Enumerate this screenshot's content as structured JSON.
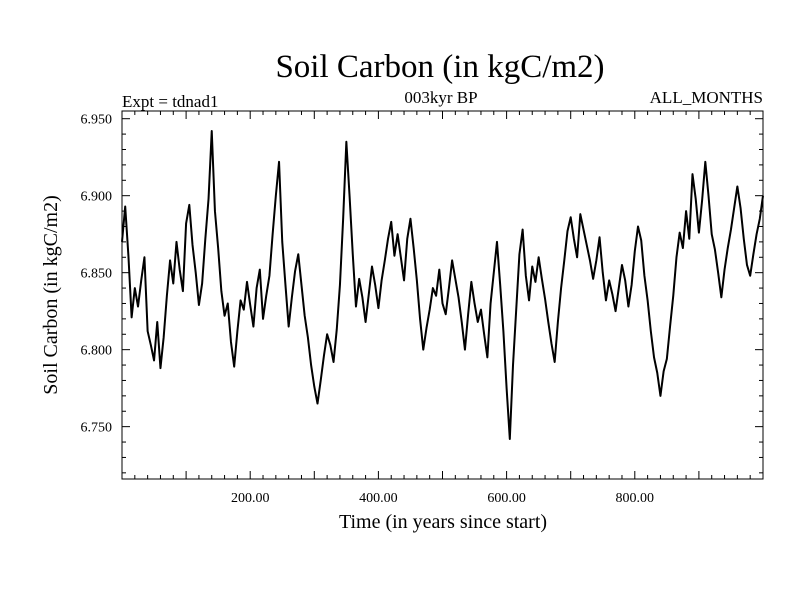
{
  "chart_data": {
    "type": "line",
    "title": "Soil Carbon (in kgC/m2)",
    "header_left": "Expt = tdnad1",
    "header_center": "003kyr BP",
    "header_right": "ALL_MONTHS",
    "xlabel": "Time (in years since start)",
    "ylabel": "Soil Carbon (in kgC/m2)",
    "xlim": [
      0,
      1000
    ],
    "ylim": [
      6.716,
      6.955
    ],
    "x_ticks": [
      200,
      400,
      600,
      800
    ],
    "x_tick_labels": [
      "200.00",
      "400.00",
      "600.00",
      "800.00"
    ],
    "y_ticks": [
      6.75,
      6.8,
      6.85,
      6.9,
      6.95
    ],
    "y_tick_labels": [
      "6.750",
      "6.800",
      "6.850",
      "6.900",
      "6.950"
    ],
    "grid": false,
    "series": [
      {
        "name": "Soil Carbon",
        "color": "#000000",
        "x": [
          0,
          5,
          10,
          15,
          20,
          25,
          30,
          35,
          40,
          45,
          50,
          55,
          60,
          65,
          70,
          75,
          80,
          85,
          90,
          95,
          100,
          105,
          110,
          115,
          120,
          125,
          130,
          135,
          140,
          145,
          150,
          155,
          160,
          165,
          170,
          175,
          180,
          185,
          190,
          195,
          200,
          205,
          210,
          215,
          220,
          225,
          230,
          235,
          240,
          245,
          250,
          255,
          260,
          265,
          270,
          275,
          280,
          285,
          290,
          295,
          300,
          305,
          310,
          315,
          320,
          325,
          330,
          335,
          340,
          345,
          350,
          355,
          360,
          365,
          370,
          375,
          380,
          385,
          390,
          395,
          400,
          405,
          410,
          415,
          420,
          425,
          430,
          435,
          440,
          445,
          450,
          455,
          460,
          465,
          470,
          475,
          480,
          485,
          490,
          495,
          500,
          505,
          510,
          515,
          520,
          525,
          530,
          535,
          540,
          545,
          550,
          555,
          560,
          565,
          570,
          575,
          580,
          585,
          590,
          595,
          600,
          605,
          610,
          615,
          620,
          625,
          630,
          635,
          640,
          645,
          650,
          655,
          660,
          665,
          670,
          675,
          680,
          685,
          690,
          695,
          700,
          705,
          710,
          715,
          720,
          725,
          730,
          735,
          740,
          745,
          750,
          755,
          760,
          765,
          770,
          775,
          780,
          785,
          790,
          795,
          800,
          805,
          810,
          815,
          820,
          825,
          830,
          835,
          840,
          845,
          850,
          855,
          860,
          865,
          870,
          875,
          880,
          885,
          890,
          895,
          900,
          905,
          910,
          915,
          920,
          925,
          930,
          935,
          940,
          945,
          950,
          955,
          960,
          965,
          970,
          975,
          980,
          985,
          990,
          995,
          1000
        ],
        "values": [
          6.87,
          6.893,
          6.861,
          6.821,
          6.84,
          6.828,
          6.845,
          6.86,
          6.812,
          6.803,
          6.793,
          6.818,
          6.788,
          6.808,
          6.835,
          6.858,
          6.843,
          6.87,
          6.852,
          6.838,
          6.882,
          6.894,
          6.868,
          6.85,
          6.829,
          6.843,
          6.872,
          6.898,
          6.942,
          6.89,
          6.866,
          6.838,
          6.822,
          6.83,
          6.805,
          6.789,
          6.812,
          6.832,
          6.826,
          6.844,
          6.829,
          6.815,
          6.84,
          6.852,
          6.82,
          6.835,
          6.848,
          6.875,
          6.9,
          6.922,
          6.87,
          6.842,
          6.815,
          6.834,
          6.851,
          6.862,
          6.842,
          6.822,
          6.808,
          6.79,
          6.776,
          6.765,
          6.78,
          6.796,
          6.81,
          6.803,
          6.792,
          6.813,
          6.842,
          6.885,
          6.935,
          6.9,
          6.862,
          6.828,
          6.846,
          6.834,
          6.818,
          6.836,
          6.854,
          6.842,
          6.827,
          6.845,
          6.858,
          6.872,
          6.883,
          6.861,
          6.875,
          6.86,
          6.845,
          6.872,
          6.885,
          6.866,
          6.845,
          6.82,
          6.8,
          6.814,
          6.826,
          6.84,
          6.835,
          6.852,
          6.83,
          6.823,
          6.84,
          6.858,
          6.846,
          6.834,
          6.818,
          6.8,
          6.823,
          6.844,
          6.83,
          6.818,
          6.826,
          6.81,
          6.795,
          6.83,
          6.85,
          6.87,
          6.842,
          6.812,
          6.775,
          6.742,
          6.79,
          6.826,
          6.862,
          6.878,
          6.848,
          6.832,
          6.854,
          6.844,
          6.86,
          6.846,
          6.833,
          6.818,
          6.804,
          6.792,
          6.818,
          6.84,
          6.858,
          6.877,
          6.886,
          6.872,
          6.86,
          6.888,
          6.878,
          6.868,
          6.858,
          6.846,
          6.858,
          6.873,
          6.85,
          6.832,
          6.845,
          6.836,
          6.825,
          6.84,
          6.855,
          6.845,
          6.828,
          6.842,
          6.864,
          6.88,
          6.871,
          6.848,
          6.832,
          6.812,
          6.795,
          6.785,
          6.77,
          6.786,
          6.794,
          6.815,
          6.835,
          6.86,
          6.876,
          6.866,
          6.89,
          6.872,
          6.914,
          6.898,
          6.876,
          6.897,
          6.922,
          6.9,
          6.875,
          6.865,
          6.85,
          6.834,
          6.852,
          6.866,
          6.878,
          6.892,
          6.906,
          6.892,
          6.872,
          6.855,
          6.848,
          6.862,
          6.875,
          6.885,
          6.9
        ]
      }
    ]
  }
}
